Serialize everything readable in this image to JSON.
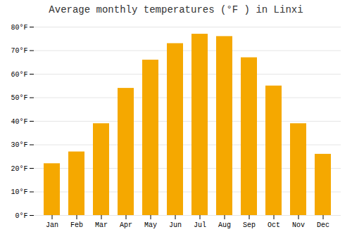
{
  "chart_data": {
    "type": "bar",
    "title": "Average monthly temperatures (°F ) in Linxi",
    "categories": [
      "Jan",
      "Feb",
      "Mar",
      "Apr",
      "May",
      "Jun",
      "Jul",
      "Aug",
      "Sep",
      "Oct",
      "Nov",
      "Dec"
    ],
    "values": [
      22,
      27,
      39,
      54,
      66,
      73,
      77,
      76,
      67,
      55,
      39,
      26
    ],
    "color": "#F5A800",
    "ylim": [
      0,
      80
    ],
    "yticks": [
      {
        "value": 0,
        "label": "0°F"
      },
      {
        "value": 10,
        "label": "10°F"
      },
      {
        "value": 20,
        "label": "20°F"
      },
      {
        "value": 30,
        "label": "30°F"
      },
      {
        "value": 40,
        "label": "40°F"
      },
      {
        "value": 50,
        "label": "50°F"
      },
      {
        "value": 60,
        "label": "60°F"
      },
      {
        "value": 70,
        "label": "70°F"
      },
      {
        "value": 80,
        "label": "80°F"
      }
    ],
    "grid": true
  }
}
